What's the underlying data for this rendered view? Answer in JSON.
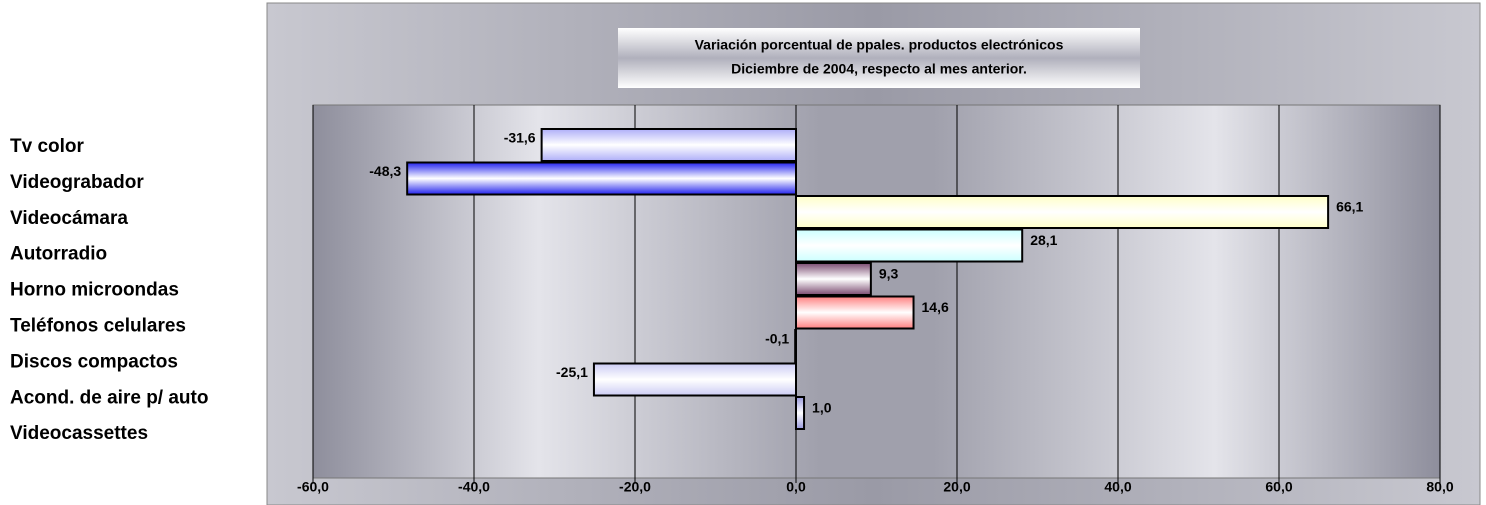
{
  "chart_data": {
    "type": "barh",
    "title": "Variación porcentual de ppales. productos electrónicos",
    "subtitle": "Diciembre de 2004, respecto al mes anterior.",
    "categories": [
      "Tv color",
      "Videograbador",
      "Videocámara",
      "Autorradio",
      "Horno microondas",
      "Teléfonos celulares",
      "Discos compactos",
      "Acond. de aire p/ auto",
      "Videocassettes"
    ],
    "values": [
      -31.6,
      -48.3,
      66.1,
      28.1,
      9.3,
      14.6,
      -0.1,
      -25.1,
      1.0
    ],
    "value_labels": [
      "-31,6",
      "-48,3",
      "66,1",
      "28,1",
      "9,3",
      "14,6",
      "-0,1",
      "-25,1",
      "1,0"
    ],
    "colors": [
      "#aeaef8",
      "#2222ee",
      "#ffffc8",
      "#ccffff",
      "#7a4a70",
      "#ff8080",
      "#ccccf4",
      "#ccccf4",
      "#9999dd"
    ],
    "xlim": [
      -60,
      80
    ],
    "xticks": [
      {
        "value": -60,
        "label": "-60,0"
      },
      {
        "value": -40,
        "label": "-40,0"
      },
      {
        "value": -20,
        "label": "-20,0"
      },
      {
        "value": 0,
        "label": "0,0"
      },
      {
        "value": 20,
        "label": "20,0"
      },
      {
        "value": 40,
        "label": "40,0"
      },
      {
        "value": 60,
        "label": "60,0"
      },
      {
        "value": 80,
        "label": "80,0"
      }
    ],
    "grid": true
  }
}
